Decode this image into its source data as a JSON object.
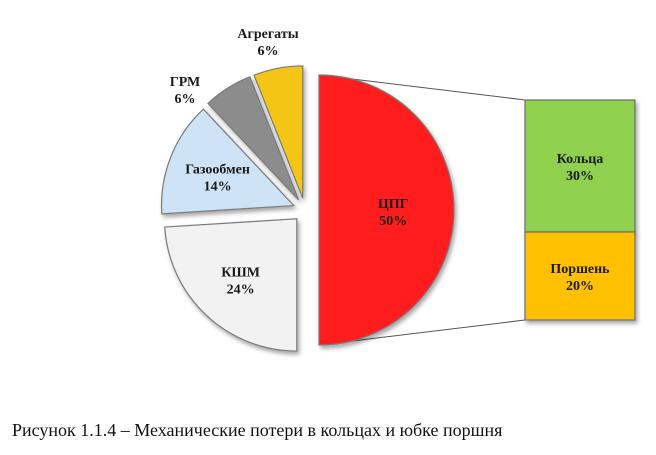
{
  "chart_data": {
    "type": "bar-of-pie",
    "pie": {
      "categories": [
        "ЦПГ",
        "КШМ",
        "Газообмен",
        "ГРМ",
        "Агрегаты"
      ],
      "values": [
        50,
        24,
        14,
        6,
        6
      ],
      "value_labels": [
        "50%",
        "24%",
        "14%",
        "6%",
        "6%"
      ],
      "colors": [
        "#ff1a1a",
        "#f2f2f2",
        "#cfe3f7",
        "#8c8c8c",
        "#f5c518"
      ]
    },
    "breakdown": {
      "of": "ЦПГ",
      "categories": [
        "Кольца",
        "Поршень"
      ],
      "values": [
        30,
        20
      ],
      "value_labels": [
        "30%",
        "20%"
      ],
      "colors": [
        "#8fd14f",
        "#ffc000"
      ]
    }
  },
  "caption": "Рисунок 1.1.4 – Механические потери в кольцах и юбке поршня"
}
